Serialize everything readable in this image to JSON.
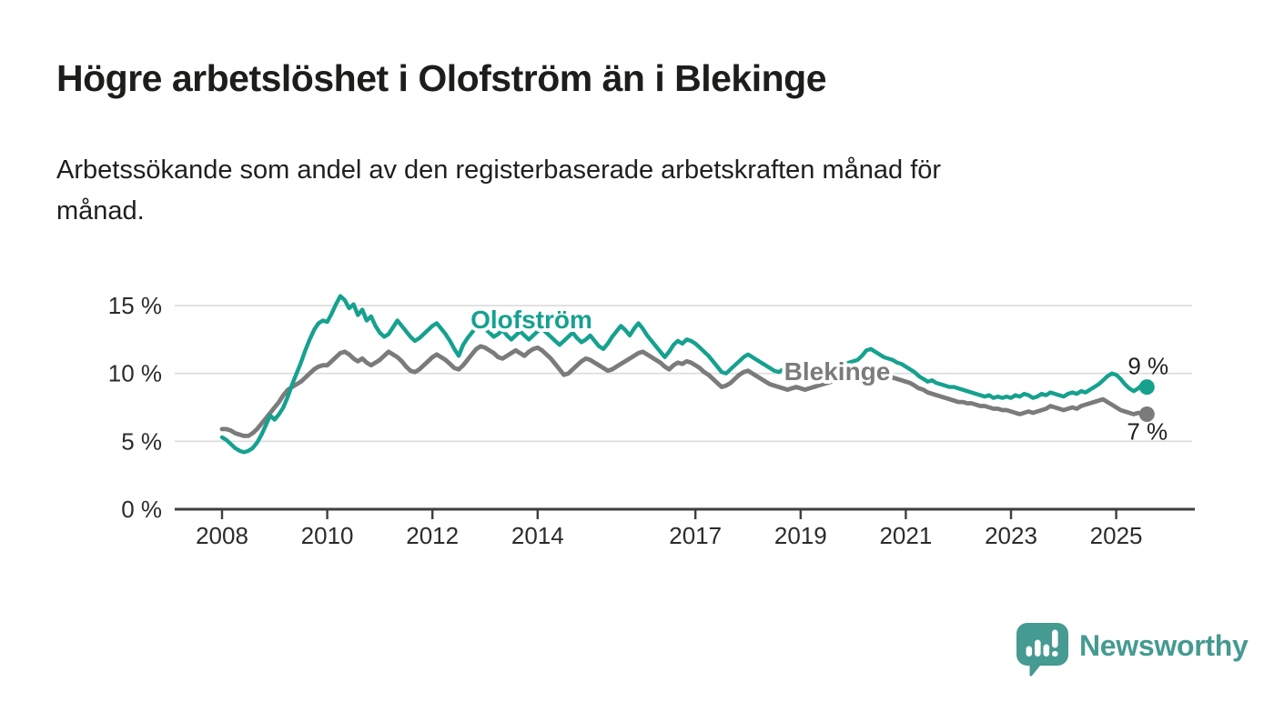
{
  "page": {
    "title": "Högre arbetslöshet i Olofström än i Blekinge",
    "subtitle_lines": [
      "Arbetssökande som andel av den registerbaserade arbetskraften månad för",
      "månad."
    ]
  },
  "branding": {
    "name": "Newsworthy",
    "color": "#459a91",
    "icon": "speech-bubble-bar-chart-icon"
  },
  "chart_data": {
    "type": "line",
    "unit": "%",
    "frequency": "monthly",
    "x_start": {
      "year": 2008,
      "month": 1
    },
    "x_end": {
      "year": 2025,
      "month": 8
    },
    "ylim": [
      0,
      16.5
    ],
    "grid": "horizontal",
    "y_ticks": [
      {
        "value": 0,
        "label": "0 %"
      },
      {
        "value": 5,
        "label": "5 %"
      },
      {
        "value": 10,
        "label": "10 %"
      },
      {
        "value": 15,
        "label": "15 %"
      }
    ],
    "x_ticks": [
      {
        "year": 2008,
        "label": "2008"
      },
      {
        "year": 2010,
        "label": "2010"
      },
      {
        "year": 2012,
        "label": "2012"
      },
      {
        "year": 2014,
        "label": "2014"
      },
      {
        "year": 2017,
        "label": "2017"
      },
      {
        "year": 2019,
        "label": "2019"
      },
      {
        "year": 2021,
        "label": "2021"
      },
      {
        "year": 2023,
        "label": "2023"
      },
      {
        "year": 2025,
        "label": "2025"
      }
    ],
    "series": [
      {
        "name": "Olofström",
        "color": "#16a18f",
        "end_label": "9 %",
        "values": [
          5.3,
          5.1,
          4.8,
          4.5,
          4.3,
          4.2,
          4.3,
          4.5,
          4.9,
          5.5,
          6.2,
          6.9,
          6.6,
          7.0,
          7.5,
          8.3,
          9.2,
          10.0,
          10.8,
          11.7,
          12.5,
          13.2,
          13.7,
          13.9,
          13.8,
          14.4,
          15.1,
          15.7,
          15.4,
          14.8,
          15.1,
          14.3,
          14.7,
          13.9,
          14.2,
          13.5,
          13.0,
          12.7,
          12.9,
          13.4,
          13.9,
          13.5,
          13.1,
          12.7,
          12.4,
          12.6,
          12.9,
          13.2,
          13.5,
          13.7,
          13.3,
          12.9,
          12.4,
          11.8,
          11.3,
          12.1,
          12.6,
          13.0,
          13.4,
          13.6,
          13.3,
          13.0,
          12.7,
          12.9,
          13.2,
          12.8,
          12.5,
          12.8,
          13.1,
          12.8,
          12.5,
          12.8,
          13.1,
          13.3,
          13.0,
          12.7,
          12.4,
          12.1,
          12.4,
          12.7,
          13.0,
          12.6,
          12.3,
          12.5,
          12.8,
          12.4,
          12.0,
          11.8,
          12.2,
          12.7,
          13.1,
          13.5,
          13.2,
          12.8,
          13.3,
          13.7,
          13.3,
          12.8,
          12.4,
          12.0,
          11.6,
          11.2,
          11.6,
          12.1,
          12.4,
          12.2,
          12.5,
          12.4,
          12.2,
          11.9,
          11.6,
          11.3,
          10.9,
          10.5,
          10.1,
          10.0,
          10.3,
          10.6,
          10.9,
          11.2,
          11.4,
          11.2,
          11.0,
          10.8,
          10.6,
          10.4,
          10.2,
          10.1,
          10.3,
          10.0,
          10.1,
          10.3,
          10.1,
          10.0,
          10.2,
          10.4,
          10.3,
          10.5,
          10.4,
          10.6,
          10.5,
          10.7,
          10.6,
          10.8,
          10.9,
          11.0,
          11.3,
          11.7,
          11.8,
          11.6,
          11.4,
          11.2,
          11.1,
          11.0,
          10.8,
          10.7,
          10.5,
          10.3,
          10.1,
          9.8,
          9.6,
          9.4,
          9.5,
          9.3,
          9.2,
          9.1,
          9.0,
          9.0,
          8.9,
          8.8,
          8.7,
          8.6,
          8.5,
          8.4,
          8.3,
          8.4,
          8.2,
          8.3,
          8.2,
          8.3,
          8.2,
          8.4,
          8.3,
          8.5,
          8.4,
          8.2,
          8.3,
          8.5,
          8.4,
          8.6,
          8.5,
          8.4,
          8.3,
          8.5,
          8.6,
          8.5,
          8.7,
          8.6,
          8.8,
          9.0,
          9.2,
          9.5,
          9.8,
          10.0,
          9.9,
          9.6,
          9.2,
          8.9,
          8.7,
          8.9,
          9.2,
          9.0
        ]
      },
      {
        "name": "Blekinge",
        "color": "#7b7b7b",
        "end_label": "7 %",
        "values": [
          5.9,
          5.9,
          5.8,
          5.6,
          5.5,
          5.4,
          5.4,
          5.6,
          5.9,
          6.3,
          6.7,
          7.1,
          7.5,
          7.9,
          8.4,
          8.8,
          9.0,
          9.2,
          9.4,
          9.7,
          10.0,
          10.3,
          10.5,
          10.6,
          10.6,
          10.9,
          11.2,
          11.5,
          11.6,
          11.4,
          11.1,
          10.9,
          11.1,
          10.8,
          10.6,
          10.8,
          11.0,
          11.3,
          11.6,
          11.4,
          11.2,
          10.9,
          10.5,
          10.2,
          10.1,
          10.3,
          10.6,
          10.9,
          11.2,
          11.4,
          11.2,
          11.0,
          10.7,
          10.4,
          10.3,
          10.6,
          11.0,
          11.4,
          11.8,
          12.0,
          11.9,
          11.7,
          11.5,
          11.2,
          11.1,
          11.3,
          11.5,
          11.7,
          11.5,
          11.3,
          11.6,
          11.8,
          11.9,
          11.7,
          11.4,
          11.1,
          10.7,
          10.3,
          9.9,
          10.0,
          10.3,
          10.6,
          10.9,
          11.1,
          11.0,
          10.8,
          10.6,
          10.4,
          10.2,
          10.3,
          10.5,
          10.7,
          10.9,
          11.1,
          11.3,
          11.5,
          11.6,
          11.4,
          11.2,
          11.0,
          10.8,
          10.5,
          10.3,
          10.6,
          10.8,
          10.7,
          10.9,
          10.8,
          10.6,
          10.4,
          10.1,
          9.9,
          9.6,
          9.3,
          9.0,
          9.1,
          9.3,
          9.6,
          9.9,
          10.1,
          10.2,
          10.0,
          9.8,
          9.6,
          9.4,
          9.2,
          9.1,
          9.0,
          8.9,
          8.8,
          8.9,
          9.0,
          8.9,
          8.8,
          8.9,
          9.0,
          9.1,
          9.2,
          9.3,
          9.4,
          9.5,
          9.6,
          9.7,
          9.8,
          9.9,
          10.0,
          10.1,
          10.3,
          10.2,
          10.1,
          10.0,
          9.9,
          9.8,
          9.7,
          9.6,
          9.5,
          9.4,
          9.3,
          9.1,
          8.9,
          8.8,
          8.6,
          8.5,
          8.4,
          8.3,
          8.2,
          8.1,
          8.0,
          7.9,
          7.9,
          7.8,
          7.8,
          7.7,
          7.6,
          7.6,
          7.5,
          7.4,
          7.4,
          7.3,
          7.3,
          7.2,
          7.1,
          7.0,
          7.1,
          7.2,
          7.1,
          7.2,
          7.3,
          7.4,
          7.6,
          7.5,
          7.4,
          7.3,
          7.4,
          7.5,
          7.4,
          7.6,
          7.7,
          7.8,
          7.9,
          8.0,
          8.1,
          7.9,
          7.7,
          7.5,
          7.3,
          7.2,
          7.1,
          7.0,
          7.1,
          7.0,
          7.0
        ]
      }
    ],
    "colors": {
      "grid": "#dcdcdc",
      "axis": "#3f3f3f",
      "tick_text": "#2b2b2b",
      "end_label_text": "#1f1f1f"
    }
  }
}
